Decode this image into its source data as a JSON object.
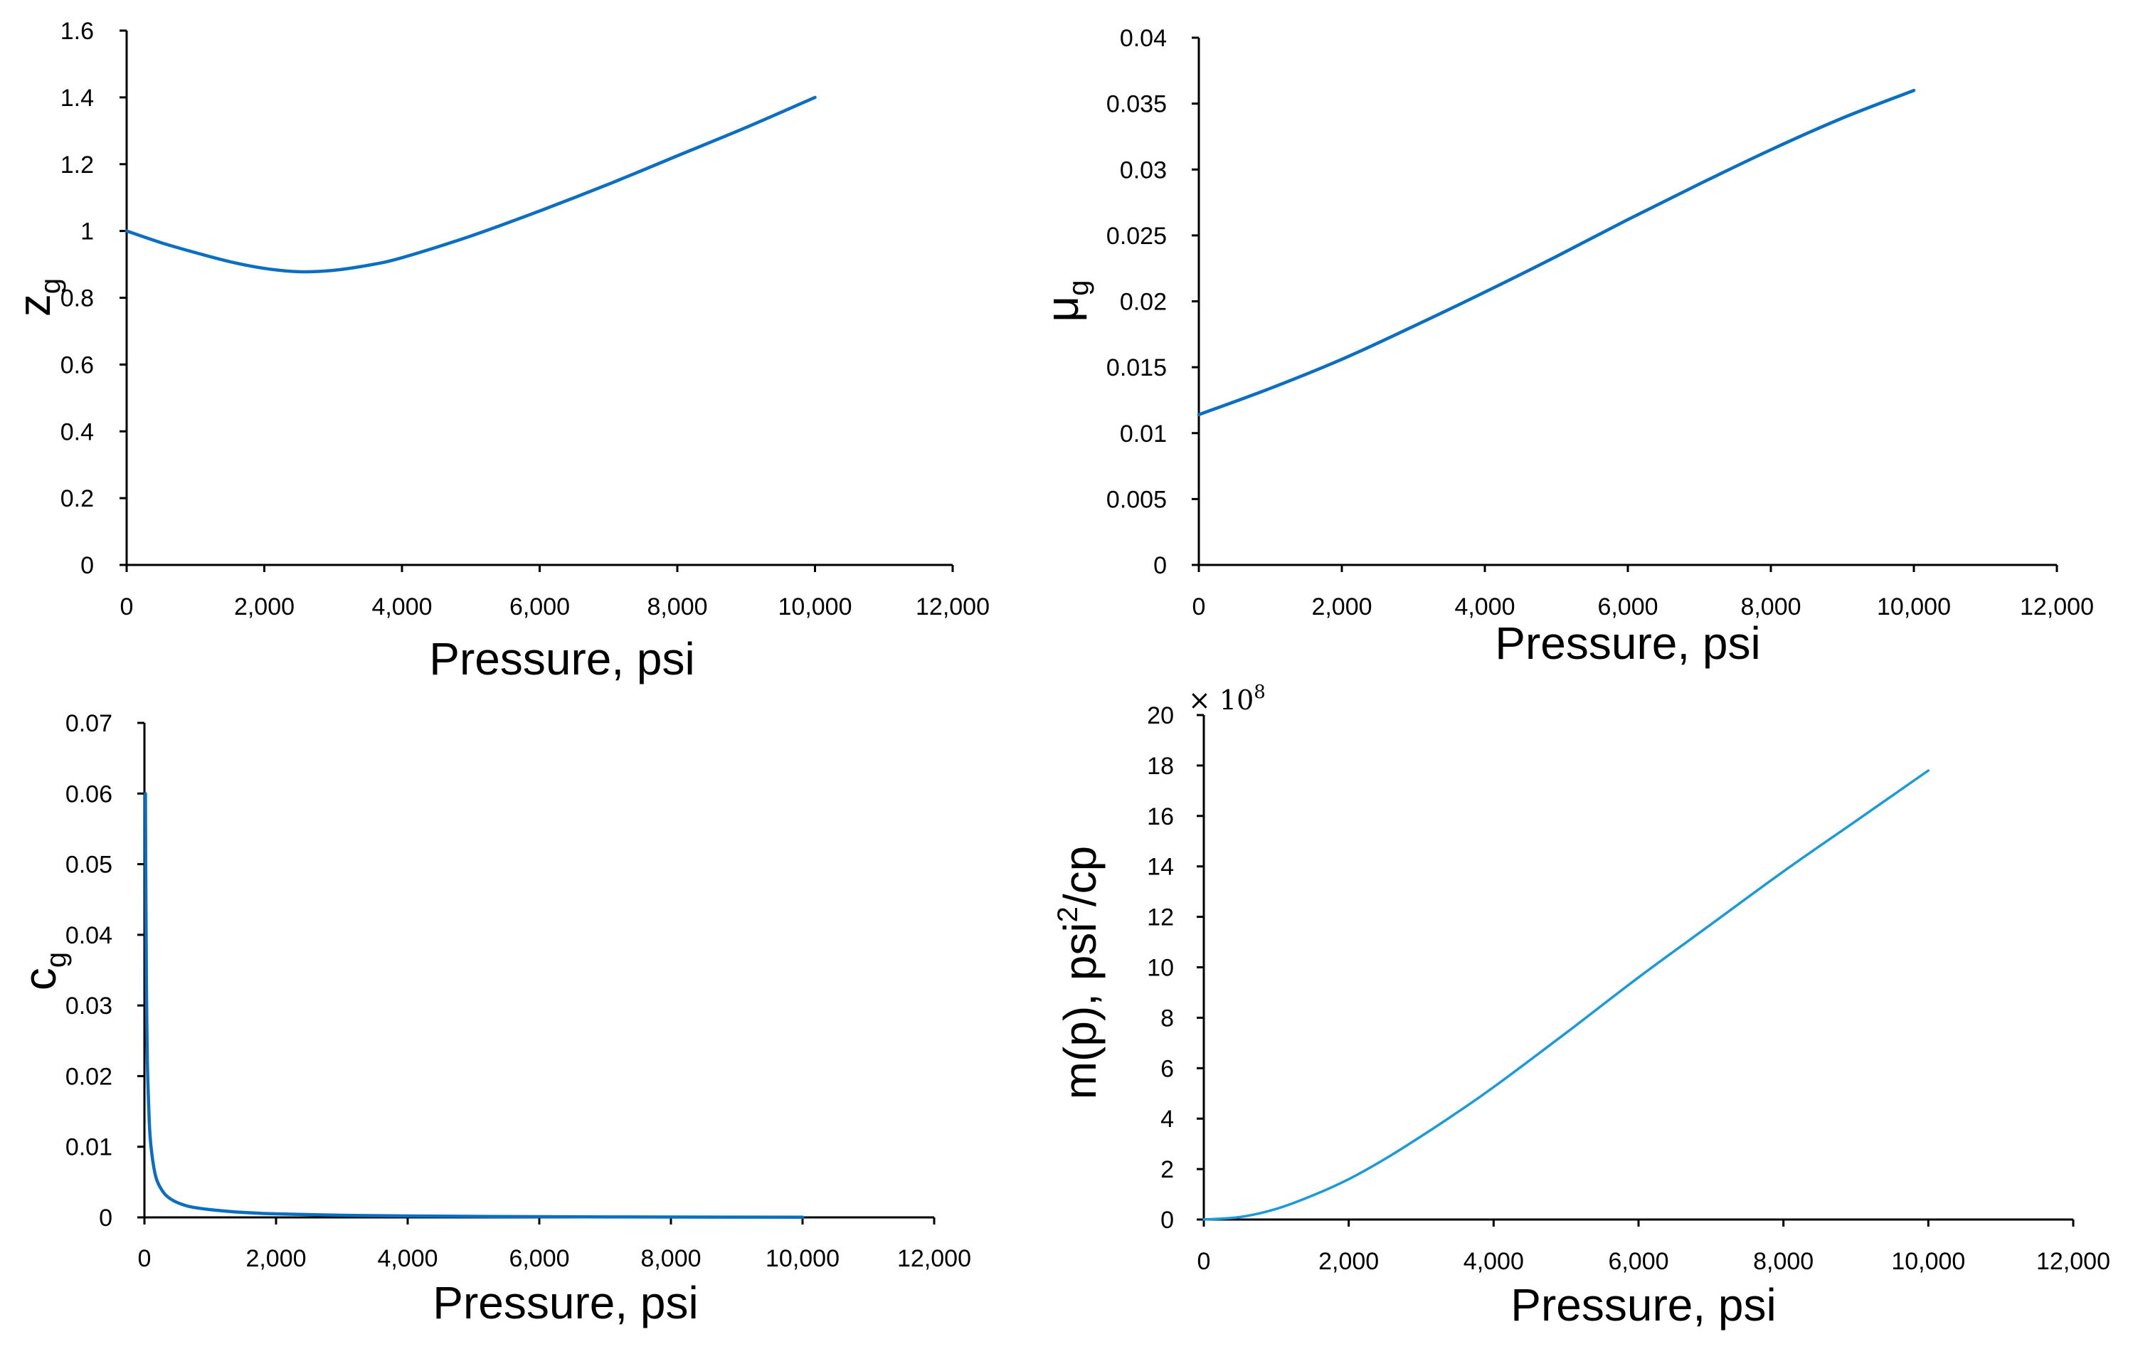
{
  "chart_data": [
    {
      "type": "line",
      "id": "zg",
      "xlabel": "Pressure, psi",
      "ylabel": "z",
      "ylabel_sub": "g",
      "xlim": [
        0,
        12000
      ],
      "ylim": [
        0,
        1.6
      ],
      "xticks": [
        "0",
        "2,000",
        "4,000",
        "6,000",
        "8,000",
        "10,000",
        "12,000"
      ],
      "yticks": [
        "0",
        "0.2",
        "0.4",
        "0.6",
        "0.8",
        "1",
        "1.2",
        "1.4",
        "1.6"
      ],
      "grid": false,
      "color": "#0a6fc2",
      "series": [
        {
          "name": "zg",
          "x": [
            0,
            500,
            1000,
            1500,
            2000,
            2500,
            3000,
            3500,
            4000,
            5000,
            6000,
            7000,
            8000,
            9000,
            10000
          ],
          "y": [
            1.0,
            0.965,
            0.935,
            0.908,
            0.888,
            0.878,
            0.882,
            0.897,
            0.92,
            0.985,
            1.06,
            1.14,
            1.225,
            1.31,
            1.4
          ]
        }
      ]
    },
    {
      "type": "line",
      "id": "mug",
      "xlabel": "Pressure, psi",
      "ylabel": "μ",
      "ylabel_sub": "g",
      "xlim": [
        0,
        12000
      ],
      "ylim": [
        0,
        0.04
      ],
      "xticks": [
        "0",
        "2,000",
        "4,000",
        "6,000",
        "8,000",
        "10,000",
        "12,000"
      ],
      "yticks": [
        "0",
        "0.005",
        "0.01",
        "0.015",
        "0.02",
        "0.025",
        "0.03",
        "0.035",
        "0.04"
      ],
      "grid": false,
      "color": "#0a6fc2",
      "series": [
        {
          "name": "mug",
          "x": [
            0,
            1000,
            2000,
            3000,
            4000,
            5000,
            6000,
            7000,
            8000,
            9000,
            10000
          ],
          "y": [
            0.0114,
            0.0134,
            0.0156,
            0.0181,
            0.0207,
            0.0234,
            0.0262,
            0.0289,
            0.0315,
            0.0339,
            0.036
          ]
        }
      ]
    },
    {
      "type": "line",
      "id": "cg",
      "xlabel": "Pressure, psi",
      "ylabel": "c",
      "ylabel_sub": "g",
      "xlim": [
        0,
        12000
      ],
      "ylim": [
        0,
        0.07
      ],
      "xticks": [
        "0",
        "2,000",
        "4,000",
        "6,000",
        "8,000",
        "10,000",
        "12,000"
      ],
      "yticks": [
        "0",
        "0.01",
        "0.02",
        "0.03",
        "0.04",
        "0.05",
        "0.06",
        "0.07"
      ],
      "grid": false,
      "color": "#0a6fc2",
      "series": [
        {
          "name": "cg",
          "x": [
            14.7,
            20,
            30,
            40,
            50,
            75,
            100,
            150,
            200,
            300,
            400,
            500,
            700,
            1000,
            1500,
            2000,
            3000,
            4000,
            6000,
            8000,
            10000
          ],
          "y": [
            0.06,
            0.05,
            0.033,
            0.025,
            0.02,
            0.0133,
            0.01,
            0.0067,
            0.005,
            0.0034,
            0.0026,
            0.0021,
            0.0015,
            0.0011,
            0.0007,
            0.0005,
            0.0003,
            0.0002,
            0.0001,
            5e-05,
            3e-05
          ]
        }
      ]
    },
    {
      "type": "line",
      "id": "mp",
      "xlabel": "Pressure, psi",
      "ylabel": "m(p), psi",
      "ylabel_sup": "2",
      "ylabel_tail": "/cp",
      "multiplier_text": "× 10",
      "multiplier_exp": "8",
      "xlim": [
        0,
        12000
      ],
      "ylim": [
        0,
        20
      ],
      "xticks": [
        "0",
        "2,000",
        "4,000",
        "6,000",
        "8,000",
        "10,000",
        "12,000"
      ],
      "yticks": [
        "0",
        "2",
        "4",
        "6",
        "8",
        "10",
        "12",
        "14",
        "16",
        "18",
        "20"
      ],
      "grid": false,
      "color": "#1a9ad8",
      "series": [
        {
          "name": "m(p)",
          "x": [
            0,
            500,
            1000,
            1500,
            2000,
            2500,
            3000,
            3500,
            4000,
            5000,
            6000,
            7000,
            8000,
            9000,
            10000
          ],
          "y": [
            0,
            0.1,
            0.42,
            0.95,
            1.6,
            2.4,
            3.3,
            4.25,
            5.25,
            7.4,
            9.6,
            11.7,
            13.8,
            15.8,
            17.8
          ]
        }
      ]
    }
  ]
}
